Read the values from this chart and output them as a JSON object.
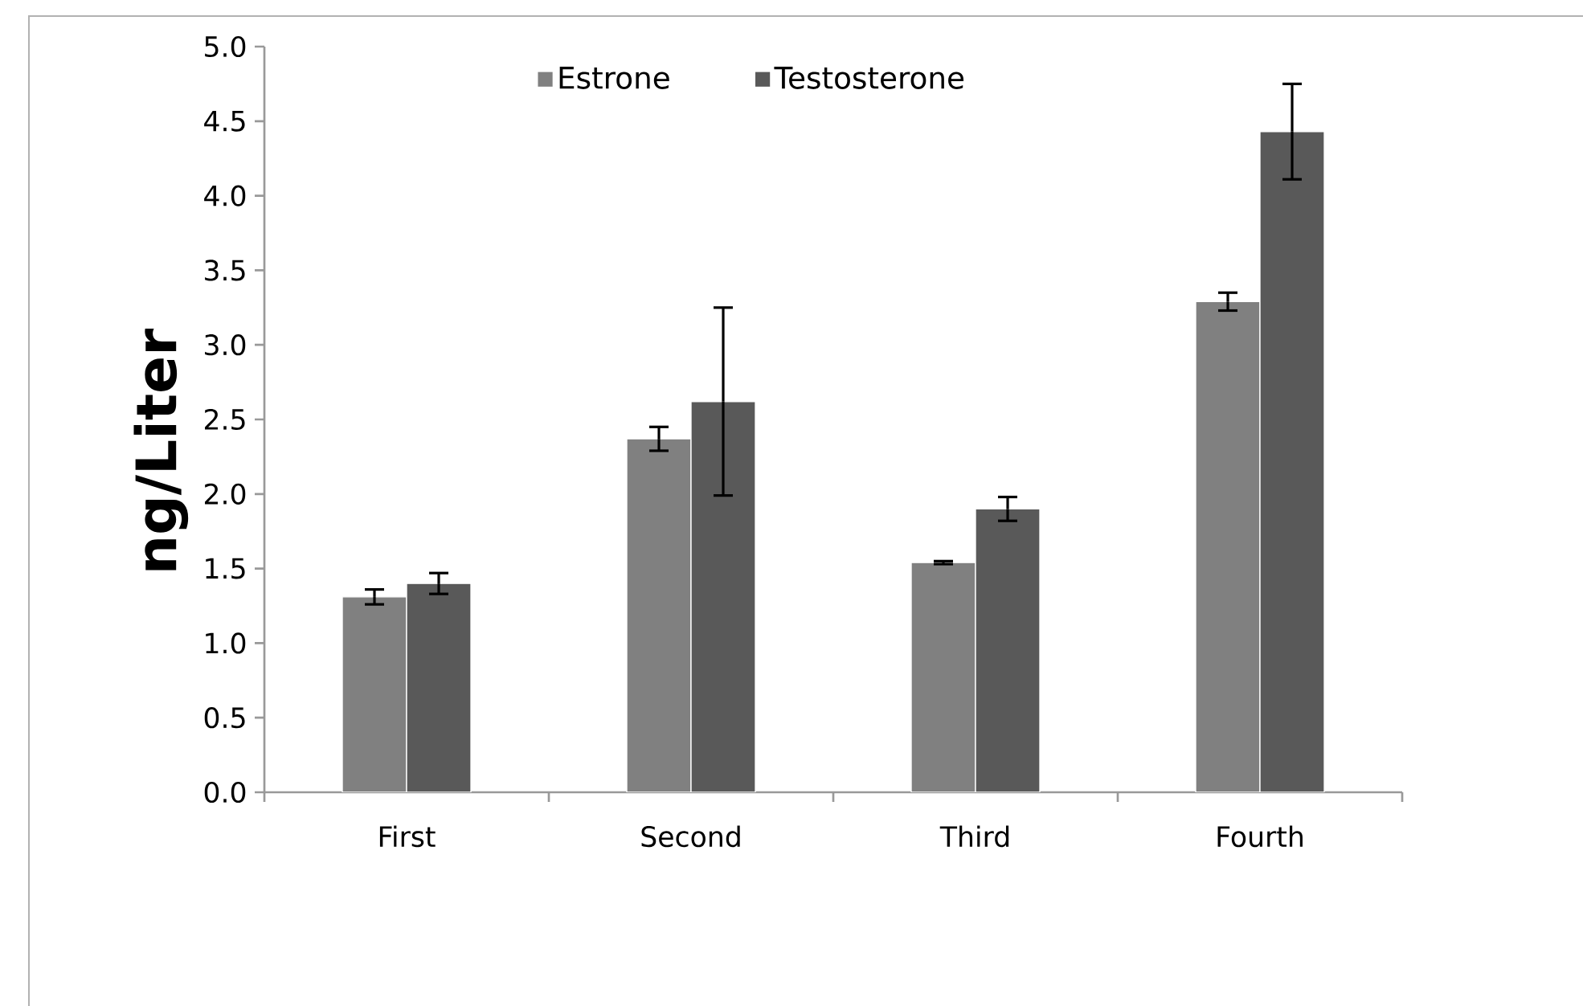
{
  "chart_data": {
    "type": "bar",
    "ylabel": "ng/Liter",
    "categories": [
      "First",
      "Second",
      "Third",
      "Fourth"
    ],
    "series": [
      {
        "name": "Estrone",
        "color": "#808080",
        "values": [
          1.31,
          2.37,
          1.54,
          3.29
        ],
        "errors": [
          0.05,
          0.08,
          0.01,
          0.06
        ]
      },
      {
        "name": "Testosterone",
        "color": "#595959",
        "values": [
          1.4,
          2.62,
          1.9,
          4.43
        ],
        "errors": [
          0.07,
          0.63,
          0.08,
          0.32
        ]
      }
    ],
    "ylim": [
      0,
      5
    ],
    "yticks": [
      {
        "value": 0,
        "label": "0.0"
      },
      {
        "value": 0.5,
        "label": "0.5"
      },
      {
        "value": 1,
        "label": "1.0"
      },
      {
        "value": 1.5,
        "label": "1.5"
      },
      {
        "value": 2,
        "label": "2.0"
      },
      {
        "value": 2.5,
        "label": "2.5"
      },
      {
        "value": 3,
        "label": "3.0"
      },
      {
        "value": 3.5,
        "label": "3.5"
      },
      {
        "value": 4,
        "label": "4.0"
      },
      {
        "value": 4.5,
        "label": "4.5"
      },
      {
        "value": 5,
        "label": "5.0"
      }
    ],
    "grid": false,
    "legend": "top"
  }
}
